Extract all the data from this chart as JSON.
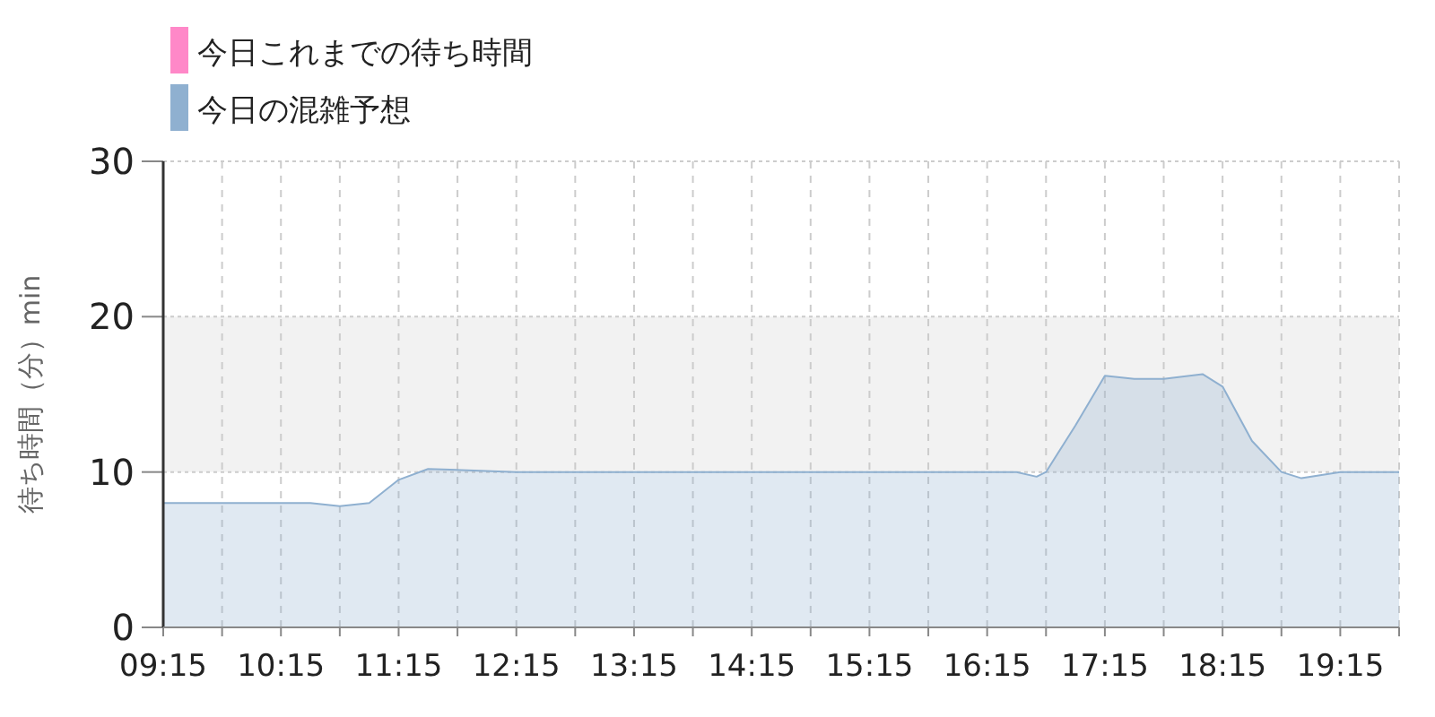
{
  "chart_data": {
    "type": "area",
    "ylabel": "待ち時間（分）min",
    "x": [
      9.25,
      10.25,
      10.5,
      10.75,
      11.0,
      11.25,
      11.5,
      12.25,
      16.25,
      16.5,
      16.67,
      16.75,
      17.0,
      17.25,
      17.5,
      17.75,
      18.08,
      18.25,
      18.5,
      18.75,
      18.92,
      19.25,
      19.75
    ],
    "series": [
      {
        "name": "今日これまでの待ち時間",
        "color": "#ff88c8",
        "values": [
          null,
          null,
          null,
          null,
          null,
          null,
          null,
          null,
          null,
          null,
          null,
          null,
          null,
          null,
          null,
          null,
          null,
          null,
          null,
          null,
          null,
          null,
          null
        ]
      },
      {
        "name": "今日の混雑予想",
        "color": "#8fb0d0",
        "values": [
          8,
          8,
          8,
          7.8,
          8,
          9.5,
          10.2,
          10,
          10,
          10,
          9.7,
          10,
          13,
          16.2,
          16,
          16,
          16.3,
          15.5,
          12,
          10,
          9.6,
          10,
          10
        ]
      }
    ],
    "xlim": [
      9.25,
      19.75
    ],
    "xticks": [
      {
        "value": 9.25,
        "label": "09:15"
      },
      {
        "value": 9.75,
        "label": null
      },
      {
        "value": 10.25,
        "label": "10:15"
      },
      {
        "value": 10.75,
        "label": null
      },
      {
        "value": 11.25,
        "label": "11:15"
      },
      {
        "value": 11.75,
        "label": null
      },
      {
        "value": 12.25,
        "label": "12:15"
      },
      {
        "value": 12.75,
        "label": null
      },
      {
        "value": 13.25,
        "label": "13:15"
      },
      {
        "value": 13.75,
        "label": null
      },
      {
        "value": 14.25,
        "label": "14:15"
      },
      {
        "value": 14.75,
        "label": null
      },
      {
        "value": 15.25,
        "label": "15:15"
      },
      {
        "value": 15.75,
        "label": null
      },
      {
        "value": 16.25,
        "label": "16:15"
      },
      {
        "value": 16.75,
        "label": null
      },
      {
        "value": 17.25,
        "label": "17:15"
      },
      {
        "value": 17.75,
        "label": null
      },
      {
        "value": 18.25,
        "label": "18:15"
      },
      {
        "value": 18.75,
        "label": null
      },
      {
        "value": 19.25,
        "label": "19:15"
      },
      {
        "value": 19.75,
        "label": null
      }
    ],
    "ylim": [
      0,
      30
    ],
    "yticks": [
      0,
      10,
      20,
      30
    ],
    "bands": [
      {
        "axis": "y",
        "from": 10,
        "to": 20,
        "color": "#f2f2f2"
      }
    ],
    "grid": true,
    "legend": "top left"
  }
}
